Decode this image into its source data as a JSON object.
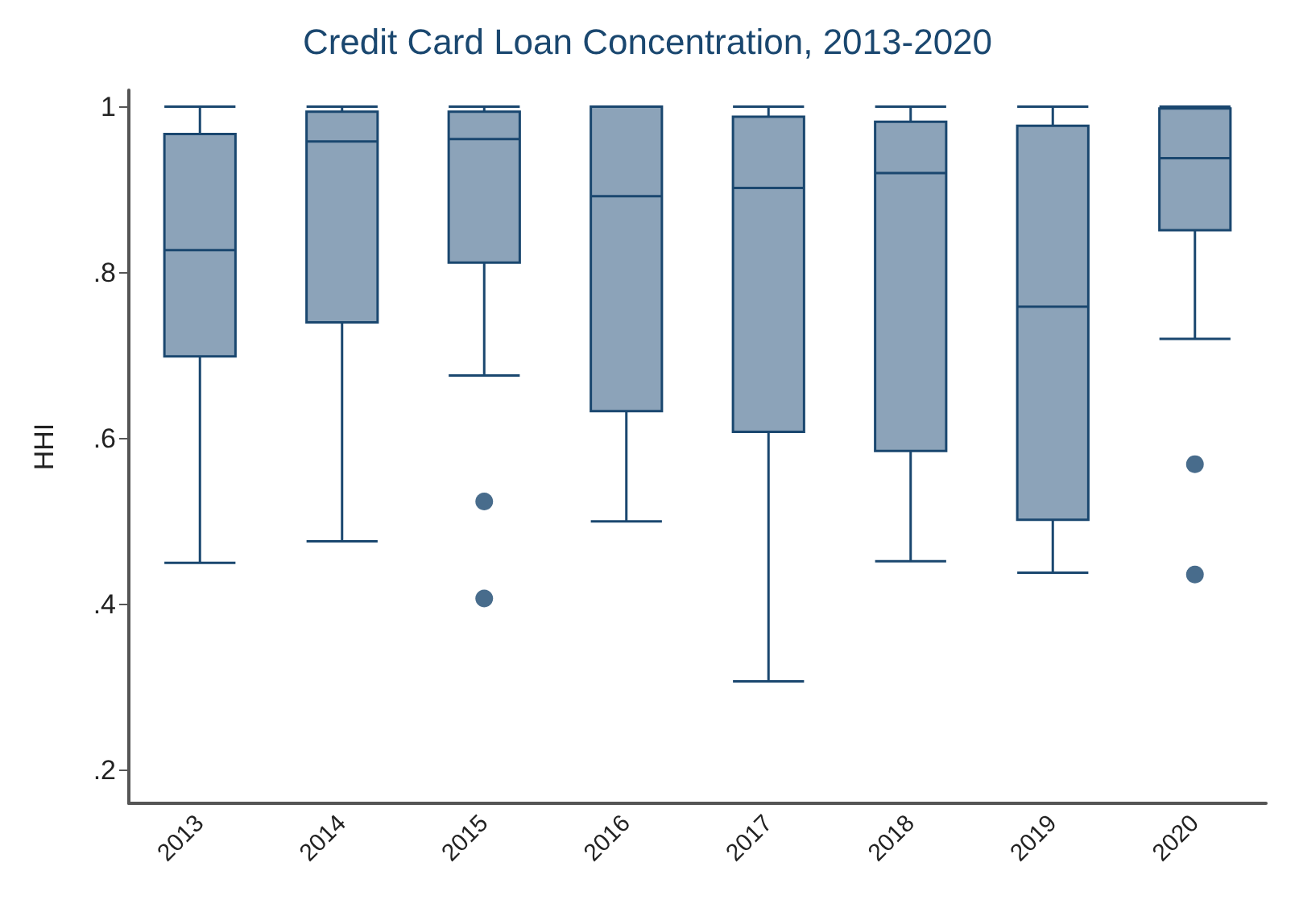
{
  "chart_data": {
    "type": "box",
    "title": "Credit Card Loan Concentration, 2013-2020",
    "ylabel": "HHI",
    "categories": [
      "2013",
      "2014",
      "2015",
      "2016",
      "2017",
      "2018",
      "2019",
      "2020"
    ],
    "series": [
      {
        "color": "#8ca3b9",
        "boxes": [
          {
            "low": 0.45,
            "q1": 0.699,
            "median": 0.827,
            "q3": 0.967,
            "high": 1.0
          },
          {
            "low": 0.476,
            "q1": 0.74,
            "median": 0.958,
            "q3": 0.994,
            "high": 1.0
          },
          {
            "low": 0.676,
            "q1": 0.812,
            "median": 0.961,
            "q3": 0.994,
            "high": 1.0,
            "outliers": [
              0.524,
              0.407
            ]
          },
          {
            "low": 0.5,
            "q1": 0.633,
            "median": 0.892,
            "q3": 1.0,
            "high": 1.0
          },
          {
            "low": 0.307,
            "q1": 0.608,
            "median": 0.902,
            "q3": 0.988,
            "high": 1.0
          },
          {
            "low": 0.452,
            "q1": 0.585,
            "median": 0.92,
            "q3": 0.982,
            "high": 1.0
          },
          {
            "low": 0.438,
            "q1": 0.502,
            "median": 0.759,
            "q3": 0.977,
            "high": 1.0
          },
          {
            "low": 0.72,
            "q1": 0.851,
            "median": 0.938,
            "q3": 0.998,
            "high": 1.0,
            "outliers": [
              0.569,
              0.436
            ]
          }
        ]
      }
    ],
    "ylim": [
      0.16,
      1.02
    ],
    "yticks": [
      {
        "value": 0.2,
        "label": ".2"
      },
      {
        "value": 0.4,
        "label": ".4"
      },
      {
        "value": 0.6,
        "label": ".6"
      },
      {
        "value": 0.8,
        "label": ".8"
      },
      {
        "value": 1,
        "label": "1"
      }
    ],
    "grid": false
  }
}
